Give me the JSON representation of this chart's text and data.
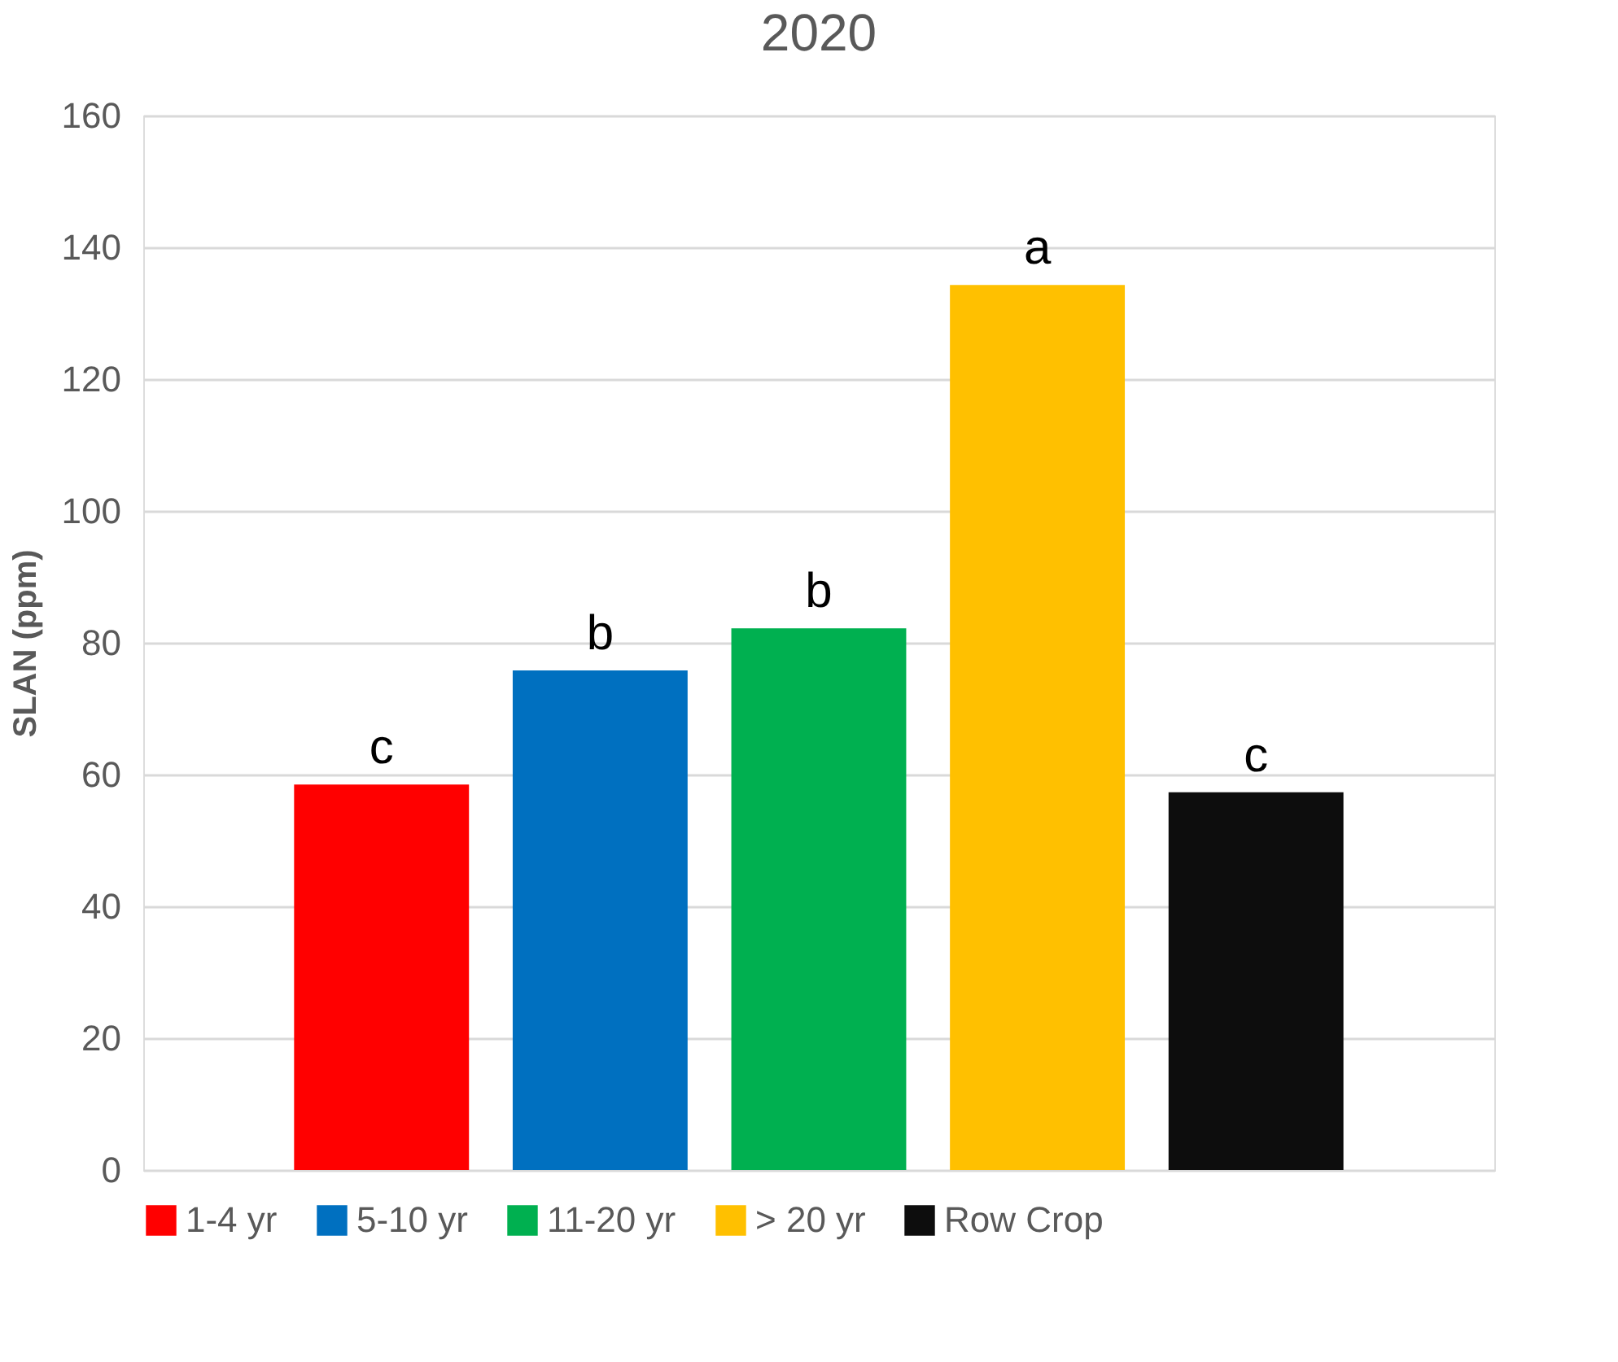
{
  "chart_data": {
    "type": "bar",
    "title": "2020",
    "ylabel": "SLAN (ppm)",
    "categories": [
      null,
      null,
      null,
      null,
      null
    ],
    "series": [
      {
        "name": "1-4 yr",
        "color": "#ff0000",
        "values": [
          58.5,
          null,
          null,
          null,
          null
        ],
        "value_labels": [
          "c",
          null,
          null,
          null,
          null
        ]
      },
      {
        "name": "5-10 yr",
        "color": "#0070c0",
        "values": [
          null,
          75.8,
          null,
          null,
          null
        ],
        "value_labels": [
          null,
          "b",
          null,
          null,
          null
        ]
      },
      {
        "name": "11-20 yr",
        "color": "#00b050",
        "values": [
          null,
          null,
          82.2,
          null,
          null
        ],
        "value_labels": [
          null,
          null,
          "b",
          null,
          null
        ]
      },
      {
        "name": "> 20 yr",
        "color": "#ffc000",
        "values": [
          null,
          null,
          null,
          134.3,
          null
        ],
        "value_labels": [
          null,
          null,
          null,
          "a",
          null
        ]
      },
      {
        "name": "Row Crop",
        "color": "#0d0d0d",
        "values": [
          null,
          null,
          null,
          null,
          57.3
        ],
        "value_labels": [
          null,
          null,
          null,
          null,
          "c"
        ]
      }
    ],
    "ylim": [
      0,
      160
    ],
    "yticks": [
      0,
      20,
      40,
      60,
      80,
      100,
      120,
      140,
      160
    ],
    "grid": "y",
    "legend": "bottom",
    "tick_labels": "y"
  }
}
